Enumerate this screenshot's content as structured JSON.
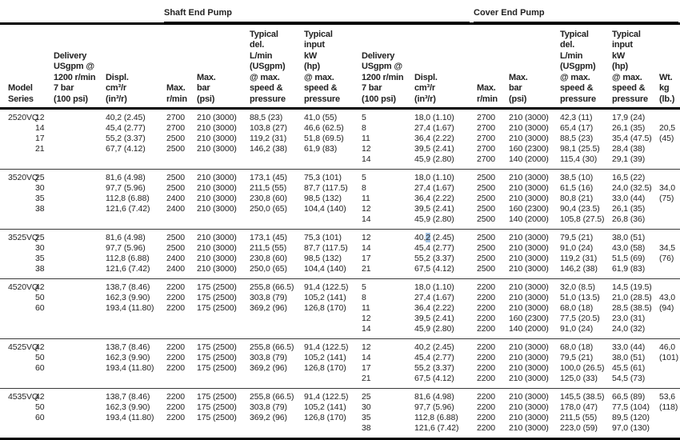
{
  "sections": {
    "shaft_title": "Shaft End Pump",
    "cover_title": "Cover End Pump"
  },
  "table": {
    "columns": [
      {
        "id": "model",
        "label": "Model\nSeries"
      },
      {
        "id": "shaft-delivery",
        "label": "Delivery\nUSgpm @\n1200 r/min\n7 bar\n(100 psi)",
        "indent": true
      },
      {
        "id": "shaft-displacement",
        "label": "Displ.\ncm³/r\n(in³/r)"
      },
      {
        "id": "shaft-max-rpm",
        "label": "Max.\nr/min"
      },
      {
        "id": "shaft-max-bar",
        "label": "Max.\nbar\n(psi)"
      },
      {
        "id": "shaft-typical-delivery",
        "label": "Typical\ndel.\nL/min\n(USgpm)\n@ max.\nspeed &\npressure"
      },
      {
        "id": "shaft-typical-input",
        "label": "Typical\ninput\nkW\n(hp)\n@ max.\nspeed &\npressure"
      },
      {
        "id": "cover-delivery",
        "label": "Delivery\nUSgpm @\n1200 r/min\n7 bar\n(100 psi)"
      },
      {
        "id": "cover-displacement",
        "label": "Displ.\ncm³/r\n(in³/r)"
      },
      {
        "id": "cover-max-rpm",
        "label": "Max.\nr/min"
      },
      {
        "id": "cover-max-bar",
        "label": "Max.\nbar\n(psi)"
      },
      {
        "id": "cover-typical-delivery",
        "label": "Typical\ndel.\nL/min\n(USgpm)\n@ max.\nspeed &\npressure"
      },
      {
        "id": "cover-typical-input",
        "label": "Typical\ninput\nkW\n(hp)\n@ max.\nspeed &\npressure"
      },
      {
        "id": "weight",
        "label": "Wt.\nkg\n(lb.)"
      }
    ],
    "blocks": [
      {
        "model": "2520VQ",
        "rows": [
          [
            "2520VQ",
            "12",
            "40,2 (2.45)",
            "2700",
            "210 (3000)",
            "88,5 (23)",
            "41,0 (55)",
            "5",
            "18,0 (1.10)",
            "2700",
            "210 (3000)",
            "42,3 (11)",
            "17,9 (24)",
            ""
          ],
          [
            "",
            "14",
            "45,4 (2.77)",
            "2700",
            "210 (3000)",
            "103,8 (27)",
            "46,6 (62.5)",
            "8",
            "27,4 (1.67)",
            "2700",
            "210 (3000)",
            "65,4 (17)",
            "26,1 (35)",
            "20,5"
          ],
          [
            "",
            "17",
            "55,2 (3.37)",
            "2500",
            "210 (3000)",
            "119,2 (31)",
            "51,8 (69.5)",
            "11",
            "36,4 (2.22)",
            "2700",
            "210 (3000)",
            "88,5 (23)",
            "35,4 (47.5)",
            "(45)"
          ],
          [
            "",
            "21",
            "67,7 (4.12)",
            "2500",
            "210 (3000)",
            "146,2 (38)",
            "61,9 (83)",
            "12",
            "39,5 (2.41)",
            "2700",
            "160 (2300)",
            "98,1 (25.5)",
            "28,4 (38)",
            ""
          ],
          [
            "",
            "",
            "",
            "",
            "",
            "",
            "",
            "14",
            "45,9 (2.80)",
            "2700",
            "140 (2000)",
            "115,4 (30)",
            "29,1 (39)",
            ""
          ]
        ]
      },
      {
        "model": "3520VQ",
        "rows": [
          [
            "3520VQ",
            "25",
            "81,6 (4.98)",
            "2500",
            "210 (3000)",
            "173,1 (45)",
            "75,3 (101)",
            "5",
            "18,0 (1.10)",
            "2500",
            "210 (3000)",
            "38,5 (10)",
            "16,5 (22)",
            ""
          ],
          [
            "",
            "30",
            "97,7 (5.96)",
            "2500",
            "210 (3000)",
            "211,5 (55)",
            "87,7 (117.5)",
            "8",
            "27,4 (1.67)",
            "2500",
            "210 (3000)",
            "61,5 (16)",
            "24,0 (32.5)",
            "34,0"
          ],
          [
            "",
            "35",
            "112,8 (6.88)",
            "2400",
            "210 (3000)",
            "230,8 (60)",
            "98,5 (132)",
            "11",
            "36,4 (2.22)",
            "2500",
            "210 (3000)",
            "80,8 (21)",
            "33,0 (44)",
            "(75)"
          ],
          [
            "",
            "38",
            "121,6 (7.42)",
            "2400",
            "210 (3000)",
            "250,0 (65)",
            "104,4 (140)",
            "12",
            "39,5 (2.41)",
            "2500",
            "160 (2300)",
            "90,4 (23.5)",
            "26,1 (35)",
            ""
          ],
          [
            "",
            "",
            "",
            "",
            "",
            "",
            "",
            "14",
            "45,9 (2.80)",
            "2500",
            "140 (2000)",
            "105,8 (27.5)",
            "26,8 (36)",
            ""
          ]
        ]
      },
      {
        "model": "3525VQ",
        "rows": [
          [
            "3525VQ",
            "25",
            "81,6 (4.98)",
            "2500",
            "210 (3000)",
            "173,1 (45)",
            "75,3 (101)",
            "12",
            "40,2 (2.45)",
            "2500",
            "210 (3000)",
            "79,5 (21)",
            "38,0 (51)",
            ""
          ],
          [
            "",
            "30",
            "97,7 (5.96)",
            "2500",
            "210 (3000)",
            "211,5 (55)",
            "87,7 (117.5)",
            "14",
            "45,4 (2.77)",
            "2500",
            "210 (3000)",
            "91,0 (24)",
            "43,0 (58)",
            "34,5"
          ],
          [
            "",
            "35",
            "112,8 (6.88)",
            "2400",
            "210 (3000)",
            "230,8 (60)",
            "98,5 (132)",
            "17",
            "55,2 (3.37)",
            "2500",
            "210 (3000)",
            "119,2 (31)",
            "51,5 (69)",
            "(76)"
          ],
          [
            "",
            "38",
            "121,6 (7.42)",
            "2400",
            "210 (3000)",
            "250,0 (65)",
            "104,4 (140)",
            "21",
            "67,5 (4.12)",
            "2500",
            "210 (3000)",
            "146,2 (38)",
            "61,9 (83)",
            ""
          ]
        ]
      },
      {
        "model": "4520VQ",
        "rows": [
          [
            "4520VQ",
            "42",
            "138,7 (8.46)",
            "2200",
            "175 (2500)",
            "255,8 (66.5)",
            "91,4 (122.5)",
            "5",
            "18,0 (1.10)",
            "2200",
            "210 (3000)",
            "32,0 (8.5)",
            "14,5 (19.5)",
            ""
          ],
          [
            "",
            "50",
            "162,3 (9.90)",
            "2200",
            "175 (2500)",
            "303,8 (79)",
            "105,2 (141)",
            "8",
            "27,4 (1.67)",
            "2200",
            "210 (3000)",
            "51,0 (13.5)",
            "21,0 (28.5)",
            "43,0"
          ],
          [
            "",
            "60",
            "193,4 (11.80)",
            "2200",
            "175 (2500)",
            "369,2 (96)",
            "126,8 (170)",
            "11",
            "36,4 (2.22)",
            "2200",
            "210 (3000)",
            "68,0 (18)",
            "28,5 (38.5)",
            "(94)"
          ],
          [
            "",
            "",
            "",
            "",
            "",
            "",
            "",
            "12",
            "39,5 (2.41)",
            "2200",
            "160 (2300)",
            "77,5 (20.5)",
            "23,0 (31)",
            ""
          ],
          [
            "",
            "",
            "",
            "",
            "",
            "",
            "",
            "14",
            "45,9 (2.80)",
            "2200",
            "140 (2000)",
            "91,0 (24)",
            "24,0 (32)",
            ""
          ]
        ]
      },
      {
        "model": "4525VQ",
        "rows": [
          [
            "4525VQ",
            "42",
            "138,7 (8.46)",
            "2200",
            "175 (2500)",
            "255,8 (66.5)",
            "91,4 (122.5)",
            "12",
            "40,2 (2.45)",
            "2200",
            "210 (3000)",
            "68,0 (18)",
            "33,0 (44)",
            "46,0"
          ],
          [
            "",
            "50",
            "162,3 (9.90)",
            "2200",
            "175 (2500)",
            "303,8 (79)",
            "105,2 (141)",
            "14",
            "45,4 (2.77)",
            "2200",
            "210 (3000)",
            "79,5 (21)",
            "38,0 (51)",
            "(101)"
          ],
          [
            "",
            "60",
            "193,4 (11.80)",
            "2200",
            "175 (2500)",
            "369,2 (96)",
            "126,8 (170)",
            "17",
            "55,2 (3.37)",
            "2200",
            "210 (3000)",
            "100,0 (26.5)",
            "45,5 (61)",
            ""
          ],
          [
            "",
            "",
            "",
            "",
            "",
            "",
            "",
            "21",
            "67,5 (4.12)",
            "2200",
            "210 (3000)",
            "125,0 (33)",
            "54,5 (73)",
            ""
          ]
        ]
      },
      {
        "model": "4535VQ",
        "rows": [
          [
            "4535VQ",
            "42",
            "138,7 (8.46)",
            "2200",
            "175 (2500)",
            "255,8 (66.5)",
            "91,4 (122.5)",
            "25",
            "81,6 (4.98)",
            "2200",
            "210 (3000)",
            "145,5 (38.5)",
            "66,5 (89)",
            "53,6"
          ],
          [
            "",
            "50",
            "162,3 (9.90)",
            "2200",
            "175 (2500)",
            "303,8 (79)",
            "105,2 (141)",
            "30",
            "97,7 (5.96)",
            "2200",
            "210 (3000)",
            "178,0 (47)",
            "77,5 (104)",
            "(118)"
          ],
          [
            "",
            "60",
            "193,4 (11.80)",
            "2200",
            "175 (2500)",
            "369,2 (96)",
            "126,8 (170)",
            "35",
            "112,8 (6.88)",
            "2200",
            "210 (3000)",
            "211,5 (55)",
            "89,5 (120)",
            ""
          ],
          [
            "",
            "",
            "",
            "",
            "",
            "",
            "",
            "38",
            "121,6 (7.42)",
            "2200",
            "210 (3000)",
            "223,0 (59)",
            "97,0 (130)",
            ""
          ]
        ]
      }
    ]
  },
  "selection": {
    "block": 2,
    "row": 0,
    "col": 8,
    "prefix": "40,",
    "selected": "2",
    "suffix": " (2.45)"
  },
  "colors": {
    "text": "#222222",
    "rule": "#000000",
    "block_separator": "#3a3a3a",
    "selection": "#a5c3e3"
  }
}
